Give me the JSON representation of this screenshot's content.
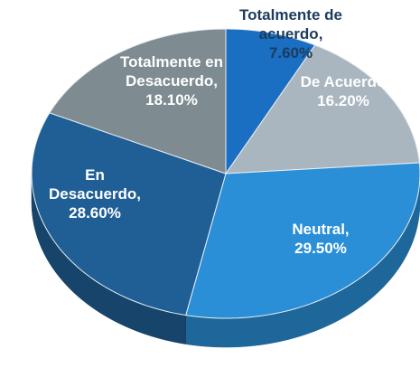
{
  "chart_data": {
    "type": "pie",
    "categories": [
      "Totalmente de acuerdo,",
      "De Acuerdo",
      "Neutral,",
      "En Desacuerdo,",
      "Totalmente en Desacuerdo,"
    ],
    "values": [
      7.6,
      16.2,
      29.5,
      28.6,
      18.1
    ],
    "value_labels": [
      "7.60%",
      "16.20%",
      "29.50%",
      "28.60%",
      "18.10%"
    ],
    "colors": [
      "#1b6fc2",
      "#a9b5bf",
      "#2a8fd6",
      "#1f5f95",
      "#7e8b91"
    ]
  }
}
